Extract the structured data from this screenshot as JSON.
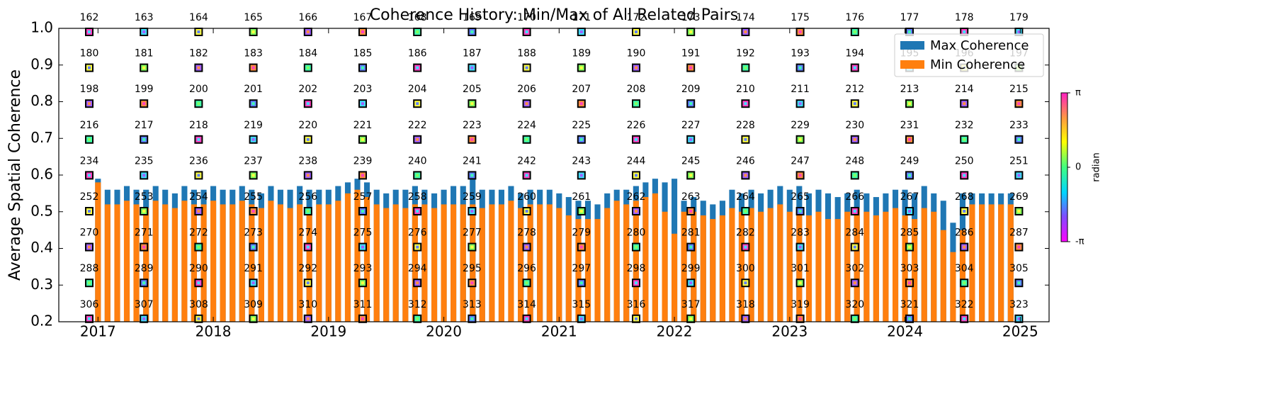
{
  "chart_data": {
    "type": "bar",
    "title": "Coherence History: Min/Max of All Related Pairs",
    "y_label": "Average Spatial Coherence",
    "x": [
      2017.0,
      2017.083,
      2017.167,
      2017.25,
      2017.333,
      2017.417,
      2017.5,
      2017.583,
      2017.667,
      2017.75,
      2017.833,
      2017.917,
      2018.0,
      2018.083,
      2018.167,
      2018.25,
      2018.333,
      2018.417,
      2018.5,
      2018.583,
      2018.667,
      2018.75,
      2018.833,
      2018.917,
      2019.0,
      2019.083,
      2019.167,
      2019.25,
      2019.333,
      2019.417,
      2019.5,
      2019.583,
      2019.667,
      2019.75,
      2019.833,
      2019.917,
      2020.0,
      2020.083,
      2020.167,
      2020.25,
      2020.333,
      2020.417,
      2020.5,
      2020.583,
      2020.667,
      2020.75,
      2020.833,
      2020.917,
      2021.0,
      2021.083,
      2021.167,
      2021.25,
      2021.333,
      2021.417,
      2021.5,
      2021.583,
      2021.667,
      2021.75,
      2021.833,
      2021.917,
      2022.0,
      2022.083,
      2022.167,
      2022.25,
      2022.333,
      2022.417,
      2022.5,
      2022.583,
      2022.667,
      2022.75,
      2022.833,
      2022.917,
      2023.0,
      2023.083,
      2023.167,
      2023.25,
      2023.333,
      2023.417,
      2023.5,
      2023.583,
      2023.667,
      2023.75,
      2023.833,
      2023.917,
      2024.0,
      2024.083,
      2024.167,
      2024.25,
      2024.333,
      2024.417,
      2024.5,
      2024.583,
      2024.667,
      2024.75,
      2024.833,
      2024.917
    ],
    "series": [
      {
        "name": "Max Coherence",
        "color": "#1f77b4",
        "values": [
          0.59,
          0.56,
          0.56,
          0.57,
          0.56,
          0.56,
          0.57,
          0.56,
          0.55,
          0.57,
          0.56,
          0.56,
          0.57,
          0.56,
          0.56,
          0.57,
          0.56,
          0.55,
          0.57,
          0.56,
          0.56,
          0.57,
          0.56,
          0.56,
          0.56,
          0.57,
          0.58,
          0.59,
          0.58,
          0.56,
          0.55,
          0.56,
          0.56,
          0.57,
          0.56,
          0.55,
          0.56,
          0.57,
          0.57,
          0.6,
          0.56,
          0.56,
          0.56,
          0.57,
          0.55,
          0.56,
          0.56,
          0.56,
          0.55,
          0.54,
          0.53,
          0.53,
          0.52,
          0.55,
          0.56,
          0.56,
          0.57,
          0.58,
          0.59,
          0.58,
          0.59,
          0.53,
          0.54,
          0.53,
          0.52,
          0.53,
          0.56,
          0.55,
          0.56,
          0.55,
          0.56,
          0.57,
          0.56,
          0.57,
          0.55,
          0.56,
          0.55,
          0.54,
          0.55,
          0.56,
          0.55,
          0.54,
          0.55,
          0.56,
          0.56,
          0.55,
          0.57,
          0.55,
          0.53,
          0.47,
          0.55,
          0.55,
          0.55,
          0.55,
          0.55,
          0.55
        ]
      },
      {
        "name": "Min Coherence",
        "color": "#ff7f0e",
        "values": [
          0.58,
          0.52,
          0.52,
          0.53,
          0.52,
          0.51,
          0.53,
          0.52,
          0.51,
          0.53,
          0.52,
          0.52,
          0.53,
          0.52,
          0.52,
          0.53,
          0.52,
          0.51,
          0.53,
          0.52,
          0.51,
          0.52,
          0.51,
          0.52,
          0.52,
          0.53,
          0.55,
          0.56,
          0.54,
          0.52,
          0.51,
          0.52,
          0.51,
          0.52,
          0.52,
          0.51,
          0.52,
          0.52,
          0.52,
          0.52,
          0.51,
          0.52,
          0.52,
          0.53,
          0.51,
          0.52,
          0.52,
          0.52,
          0.51,
          0.49,
          0.48,
          0.48,
          0.48,
          0.51,
          0.53,
          0.52,
          0.53,
          0.54,
          0.55,
          0.5,
          0.44,
          0.5,
          0.5,
          0.49,
          0.48,
          0.49,
          0.51,
          0.5,
          0.51,
          0.5,
          0.51,
          0.52,
          0.5,
          0.5,
          0.49,
          0.5,
          0.48,
          0.48,
          0.5,
          0.51,
          0.5,
          0.49,
          0.5,
          0.51,
          0.49,
          0.48,
          0.51,
          0.5,
          0.45,
          0.39,
          0.45,
          0.52,
          0.52,
          0.52,
          0.52,
          0.52
        ]
      }
    ],
    "xlim": [
      2016.66,
      2025.25
    ],
    "xticks": [
      2017,
      2018,
      2019,
      2020,
      2021,
      2022,
      2023,
      2024,
      2025
    ],
    "ylim": [
      0.2,
      1.0
    ],
    "yticks": [
      {
        "value": 0.2,
        "label": "0.2"
      },
      {
        "value": 0.3,
        "label": "0.3"
      },
      {
        "value": 0.4,
        "label": "0.4"
      },
      {
        "value": 0.5,
        "label": "0.5"
      },
      {
        "value": 0.6,
        "label": "0.6"
      },
      {
        "value": 0.7,
        "label": "0.7"
      },
      {
        "value": 0.8,
        "label": "0.8"
      },
      {
        "value": 0.9,
        "label": "0.9"
      },
      {
        "value": 1.0,
        "label": "1.0"
      }
    ],
    "legend": "upper right",
    "colorbar": {
      "label": "radian",
      "lim": [
        -3.14159,
        3.14159
      ],
      "ticks": [
        {
          "value": 3.14159,
          "label": "π"
        },
        {
          "value": 0,
          "label": "0"
        },
        {
          "value": -3.14159,
          "label": "-π"
        }
      ]
    },
    "tiles": [
      [
        162,
        163,
        164,
        165,
        166,
        167,
        168,
        169,
        170,
        171,
        172,
        173,
        174,
        175,
        176,
        177,
        178,
        179
      ],
      [
        180,
        181,
        182,
        183,
        184,
        185,
        186,
        187,
        188,
        189,
        190,
        191,
        192,
        193,
        194,
        195,
        196,
        197
      ],
      [
        198,
        199,
        200,
        201,
        202,
        203,
        204,
        205,
        206,
        207,
        208,
        209,
        210,
        211,
        212,
        213,
        214,
        215
      ],
      [
        216,
        217,
        218,
        219,
        220,
        221,
        222,
        223,
        224,
        225,
        226,
        227,
        228,
        229,
        230,
        231,
        232,
        233
      ],
      [
        234,
        235,
        236,
        237,
        238,
        239,
        240,
        241,
        242,
        243,
        244,
        245,
        246,
        247,
        248,
        249,
        250,
        251
      ],
      [
        252,
        253,
        254,
        255,
        256,
        257,
        258,
        259,
        260,
        261,
        262,
        263,
        264,
        265,
        266,
        267,
        268,
        269
      ],
      [
        270,
        271,
        272,
        273,
        274,
        275,
        276,
        277,
        278,
        279,
        280,
        281,
        282,
        283,
        284,
        285,
        286,
        287
      ],
      [
        288,
        289,
        290,
        291,
        292,
        293,
        294,
        295,
        296,
        297,
        298,
        299,
        300,
        301,
        302,
        303,
        304,
        305
      ],
      [
        306,
        307,
        308,
        309,
        310,
        311,
        312,
        313,
        314,
        315,
        316,
        317,
        318,
        319,
        320,
        321,
        322,
        323
      ]
    ]
  }
}
